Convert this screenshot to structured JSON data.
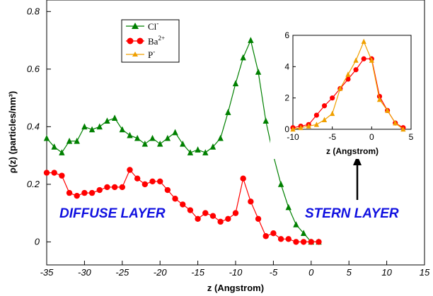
{
  "chart_data": [
    {
      "type": "line",
      "xlabel": "z (Angstrom)",
      "ylabel": "ρ(z) (particles/nm³)",
      "xlim": [
        -35,
        15
      ],
      "ylim": [
        -0.08,
        0.84
      ],
      "xticks": [
        "-35",
        "-30",
        "-25",
        "-20",
        "-15",
        "-10",
        "-5",
        "0",
        "5",
        "10",
        "15"
      ],
      "yticks": [
        "0",
        "0.2",
        "0.4",
        "0.6",
        "0.8"
      ],
      "grid": false,
      "legend": "top-left",
      "series": [
        {
          "name": "Cl⁻",
          "color": "#008000",
          "marker": "triangle",
          "x": [
            -35,
            -34,
            -33,
            -32,
            -31,
            -30,
            -29,
            -28,
            -27,
            -26,
            -25,
            -24,
            -23,
            -22,
            -21,
            -20,
            -19,
            -18,
            -17,
            -16,
            -15,
            -14,
            -13,
            -12,
            -11,
            -10,
            -9,
            -8,
            -7,
            -6,
            -5,
            -4,
            -3,
            -2,
            -1,
            0,
            1
          ],
          "values": [
            0.36,
            0.33,
            0.31,
            0.35,
            0.35,
            0.4,
            0.39,
            0.4,
            0.42,
            0.43,
            0.39,
            0.37,
            0.36,
            0.34,
            0.36,
            0.34,
            0.36,
            0.38,
            0.34,
            0.31,
            0.32,
            0.31,
            0.33,
            0.36,
            0.45,
            0.55,
            0.64,
            0.7,
            0.59,
            0.42,
            0.3,
            0.2,
            0.12,
            0.06,
            0.03,
            0.0,
            0.0
          ]
        },
        {
          "name": "Ba²⁺",
          "color": "#ff0000",
          "marker": "circle",
          "x": [
            -35,
            -34,
            -33,
            -32,
            -31,
            -30,
            -29,
            -28,
            -27,
            -26,
            -25,
            -24,
            -23,
            -22,
            -21,
            -20,
            -19,
            -18,
            -17,
            -16,
            -15,
            -14,
            -13,
            -12,
            -11,
            -10,
            -9,
            -8,
            -7,
            -6,
            -5,
            -4,
            -3,
            -2,
            -1,
            0,
            1
          ],
          "values": [
            0.24,
            0.24,
            0.23,
            0.17,
            0.16,
            0.17,
            0.17,
            0.18,
            0.19,
            0.19,
            0.19,
            0.25,
            0.22,
            0.2,
            0.21,
            0.21,
            0.18,
            0.15,
            0.13,
            0.11,
            0.08,
            0.1,
            0.09,
            0.07,
            0.08,
            0.1,
            0.22,
            0.14,
            0.08,
            0.02,
            0.03,
            0.01,
            0.01,
            0.0,
            0.0,
            0.0,
            0.0
          ]
        }
      ]
    },
    {
      "type": "line",
      "placement": "inset-top-right",
      "xlabel": "z (Angstrom)",
      "ylabel": "",
      "xlim": [
        -10,
        5
      ],
      "ylim": [
        0,
        6
      ],
      "xticks": [
        "-10",
        "-5",
        "0",
        "5"
      ],
      "yticks": [
        "0",
        "2",
        "4",
        "6"
      ],
      "grid": false,
      "series": [
        {
          "name": "Ba²⁺",
          "color": "#ff0000",
          "marker": "circle",
          "x": [
            -10,
            -9,
            -8,
            -7,
            -6,
            -5,
            -4,
            -3,
            -2,
            -1,
            0,
            1,
            2,
            3,
            4
          ],
          "values": [
            0.1,
            0.2,
            0.3,
            0.9,
            1.5,
            2.0,
            2.6,
            3.2,
            3.8,
            4.5,
            4.5,
            2.1,
            1.2,
            0.4,
            0.1
          ]
        },
        {
          "name": "P⁻",
          "color": "#f0a000",
          "marker": "triangle",
          "x": [
            -10,
            -9,
            -8,
            -7,
            -6,
            -5,
            -4,
            -3,
            -2,
            -1,
            0,
            1,
            2,
            3,
            4
          ],
          "values": [
            0.0,
            0.1,
            0.2,
            0.3,
            0.6,
            1.0,
            2.6,
            3.5,
            4.4,
            5.6,
            4.4,
            1.9,
            1.2,
            0.4,
            0.0
          ]
        }
      ]
    }
  ],
  "legend": {
    "cl_label": "Cl",
    "cl_sup": "-",
    "ba_label": "Ba",
    "ba_sup": "2+",
    "p_label": "P",
    "p_sup": "-"
  },
  "annotations": {
    "diffuse": "DIFFUSE LAYER",
    "stern": "STERN LAYER"
  },
  "colors": {
    "cl": "#008000",
    "ba": "#ff0000",
    "p": "#f0a000",
    "annotation": "#1010e0"
  }
}
